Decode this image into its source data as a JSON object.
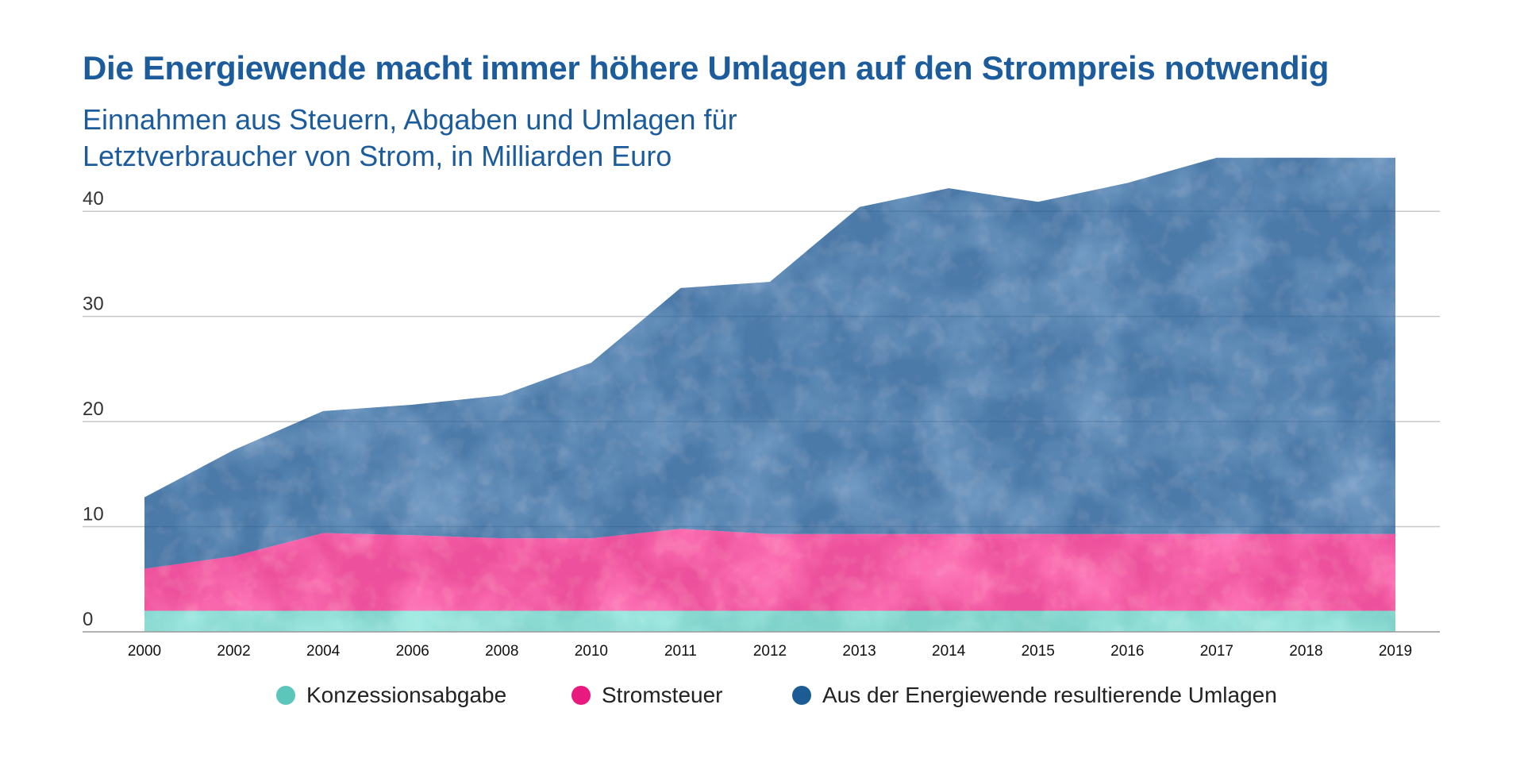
{
  "header": {
    "title": "Die Energiewende macht immer höhere Umlagen auf den Strompreis notwendig",
    "subtitle_line1": "Einnahmen aus Steuern, Abgaben und Umlagen für",
    "subtitle_line2": "Letztverbraucher von Strom, in Milliarden Euro"
  },
  "colors": {
    "konzession": "#5cc6bb",
    "stromsteuer": "#e8197f",
    "umlagen": "#1d5b95",
    "title": "#1c5c9c",
    "grid": "#c8c8c8",
    "axis": "#999999"
  },
  "chart_data": {
    "type": "area",
    "stacked": true,
    "title": "Die Energiewende macht immer höhere Umlagen auf den Strompreis notwendig",
    "subtitle": "Einnahmen aus Steuern, Abgaben und Umlagen für Letztverbraucher von Strom, in Milliarden Euro",
    "xlabel": "",
    "ylabel": "",
    "categories": [
      "2000",
      "2002",
      "2004",
      "2006",
      "2008",
      "2010",
      "2011",
      "2012",
      "2013",
      "2014",
      "2015",
      "2016",
      "2017",
      "2018",
      "2019"
    ],
    "y_ticks": [
      0,
      10,
      20,
      30,
      40
    ],
    "ylim": [
      0,
      45
    ],
    "grid": true,
    "legend_position": "bottom",
    "series": [
      {
        "name": "Konzessionsabgabe",
        "values": [
          2.0,
          2.0,
          2.0,
          2.0,
          2.0,
          2.0,
          2.0,
          2.0,
          2.0,
          2.0,
          2.0,
          2.0,
          2.0,
          2.0,
          2.0
        ]
      },
      {
        "name": "Stromsteuer",
        "values": [
          4.0,
          5.2,
          7.4,
          7.2,
          6.9,
          6.9,
          7.8,
          7.3,
          7.3,
          7.3,
          7.3,
          7.3,
          7.3,
          7.3,
          7.3
        ]
      },
      {
        "name": "Aus der Energiewende resultierende Umlagen",
        "values": [
          6.8,
          10.1,
          11.6,
          12.4,
          13.6,
          16.7,
          22.9,
          24.0,
          31.1,
          32.9,
          31.6,
          33.4,
          35.8,
          35.8,
          35.8
        ]
      }
    ]
  }
}
